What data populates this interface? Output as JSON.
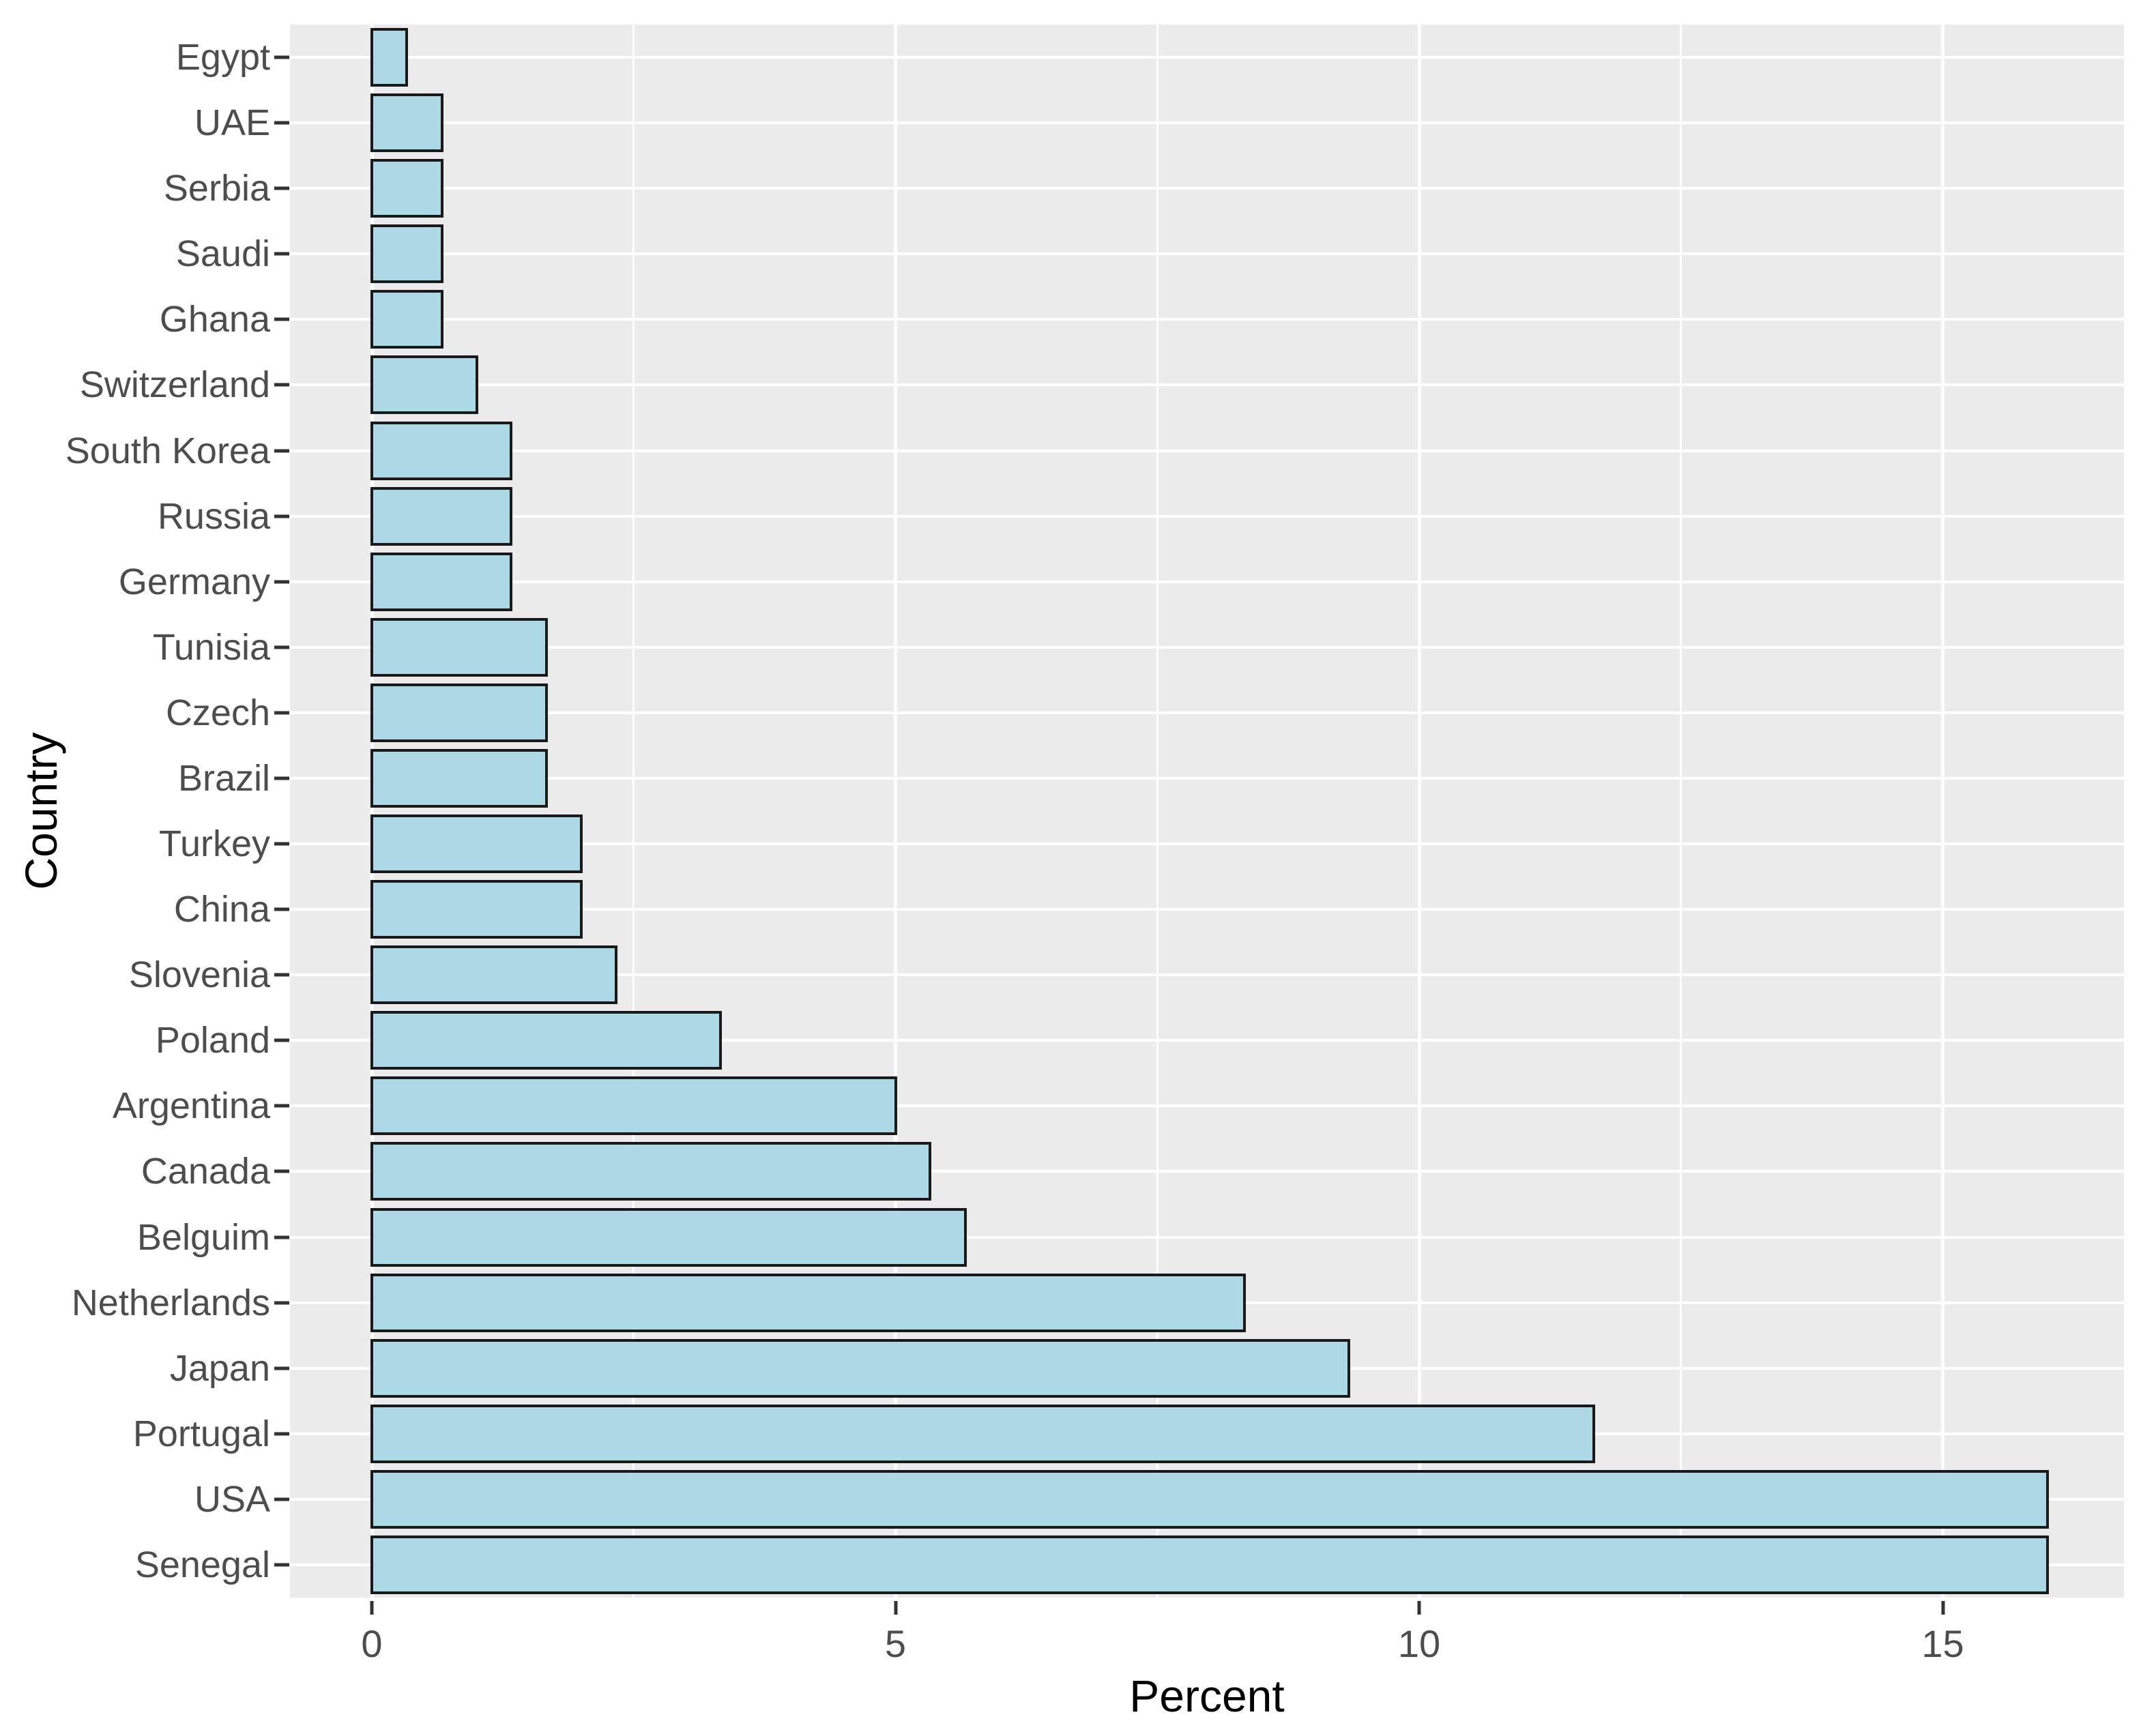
{
  "chart_data": {
    "type": "bar",
    "orientation": "horizontal",
    "title": "",
    "xlabel": "Percent",
    "ylabel": "Country",
    "categories": [
      "Egypt",
      "UAE",
      "Serbia",
      "Saudi",
      "Ghana",
      "Switzerland",
      "South Korea",
      "Russia",
      "Germany",
      "Tunisia",
      "Czech",
      "Brazil",
      "Turkey",
      "China",
      "Slovenia",
      "Poland",
      "Argentina",
      "Canada",
      "Belguim",
      "Netherlands",
      "Japan",
      "Portugal",
      "USA",
      "Senegal"
    ],
    "values": [
      0.33,
      0.67,
      0.67,
      0.67,
      0.67,
      1.0,
      1.33,
      1.33,
      1.33,
      1.67,
      1.67,
      1.67,
      2.0,
      2.0,
      2.33,
      3.33,
      5.0,
      5.33,
      5.67,
      8.33,
      9.33,
      11.67,
      16.0,
      16.0
    ],
    "xlim": [
      -0.8,
      16.75
    ],
    "x_major_ticks": [
      0,
      5,
      10,
      15
    ],
    "x_tick_labels": [
      "0",
      "5",
      "10",
      "15"
    ],
    "x_minor_gridlines": [
      2.5,
      7.5,
      12.5
    ],
    "grid": "on",
    "legend": "none",
    "colors": {
      "bar_fill": "#ADD8E6",
      "bar_border": "#1A1A1A",
      "panel_bg": "#EBEBEB",
      "gridline": "#FFFFFF",
      "tick_text": "#4D4D4D",
      "axis_title": "#000000"
    }
  }
}
